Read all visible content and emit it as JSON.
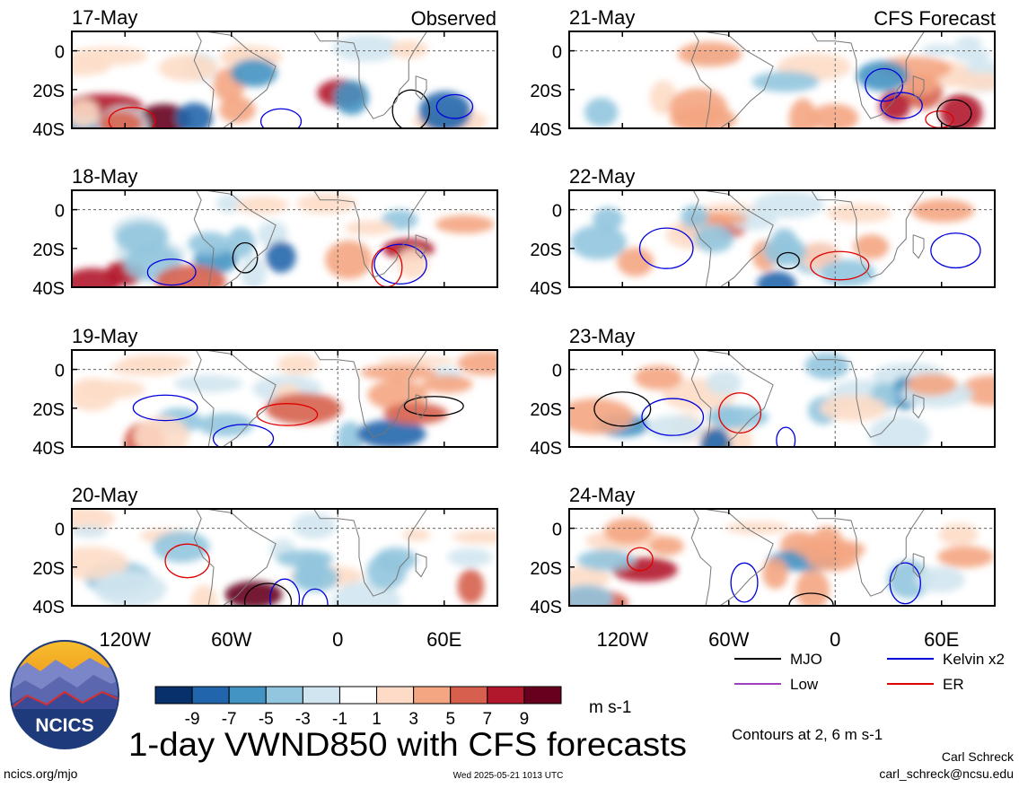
{
  "header": {
    "left_label": "Observed",
    "right_label": "CFS Forecast"
  },
  "chart_data": {
    "type": "heatmap",
    "title": "1-day VWND850 with CFS forecasts",
    "colorbar": {
      "ticks": [
        "-9",
        "-7",
        "-5",
        "-3",
        "-1",
        "1",
        "3",
        "5",
        "7",
        "9"
      ],
      "colors": [
        "#08306b",
        "#2166ac",
        "#4393c3",
        "#92c5de",
        "#d1e5f0",
        "#ffffff",
        "#fddbc7",
        "#f4a582",
        "#d6604d",
        "#b2182b",
        "#67001f"
      ],
      "units": "m s-1"
    },
    "x_ticks": [
      "120W",
      "60W",
      "0",
      "60E"
    ],
    "y_ticks": [
      "0",
      "20S",
      "40S"
    ],
    "panels": [
      {
        "date": "17-May",
        "source": "observed"
      },
      {
        "date": "18-May",
        "source": "observed"
      },
      {
        "date": "19-May",
        "source": "observed"
      },
      {
        "date": "20-May",
        "source": "observed"
      },
      {
        "date": "21-May",
        "source": "forecast"
      },
      {
        "date": "22-May",
        "source": "forecast"
      },
      {
        "date": "23-May",
        "source": "forecast"
      },
      {
        "date": "24-May",
        "source": "forecast"
      }
    ],
    "legend": [
      {
        "label": "MJO",
        "color": "#000000"
      },
      {
        "label": "Low",
        "color": "#a040c0"
      },
      {
        "label": "Kelvin x2",
        "color": "#0000dd"
      },
      {
        "label": "ER",
        "color": "#e00000"
      }
    ],
    "contours_note": "Contours at 2, 6 m s-1"
  },
  "footer": {
    "url": "ncics.org/mjo",
    "timestamp": "Wed 2025-05-21 1013 UTC",
    "author": "Carl Schreck",
    "email": "carl_schreck@ncsu.edu",
    "logo_text": "NCICS"
  }
}
